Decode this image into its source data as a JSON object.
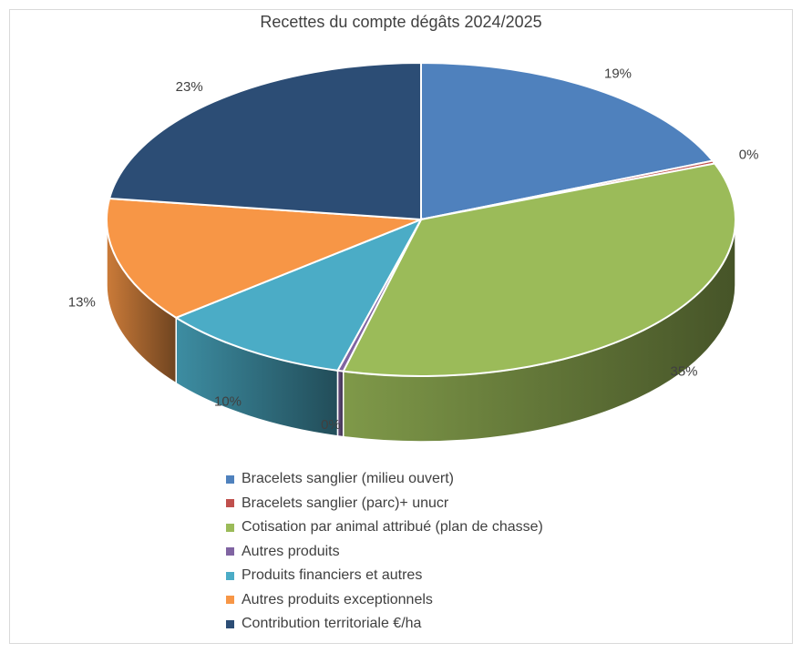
{
  "chart_data": {
    "type": "pie",
    "title": "Recettes du compte dégâts 2024/2025",
    "slices": [
      {
        "label": "Bracelets sanglier (milieu ouvert)",
        "value": 19,
        "percent_label": "19%",
        "color": "#4F81BD"
      },
      {
        "label": "Bracelets sanglier (parc)+ unucr",
        "value": 0.3,
        "percent_label": "0%",
        "color": "#C0504D"
      },
      {
        "label": "Cotisation par animal attribué (plan de chasse)",
        "value": 35,
        "percent_label": "35%",
        "color": "#9BBB59"
      },
      {
        "label": "Autres produits",
        "value": 0.3,
        "percent_label": "0%",
        "color": "#8064A2"
      },
      {
        "label": "Produits financiers et autres",
        "value": 10,
        "percent_label": "10%",
        "color": "#4BACC6"
      },
      {
        "label": "Autres produits exceptionnels",
        "value": 13,
        "percent_label": "13%",
        "color": "#F79646"
      },
      {
        "label": "Contribution territoriale €/ha",
        "value": 23,
        "percent_label": "23%",
        "color": "#2C4D75"
      }
    ],
    "legend_position": "bottom",
    "style": "3d"
  }
}
